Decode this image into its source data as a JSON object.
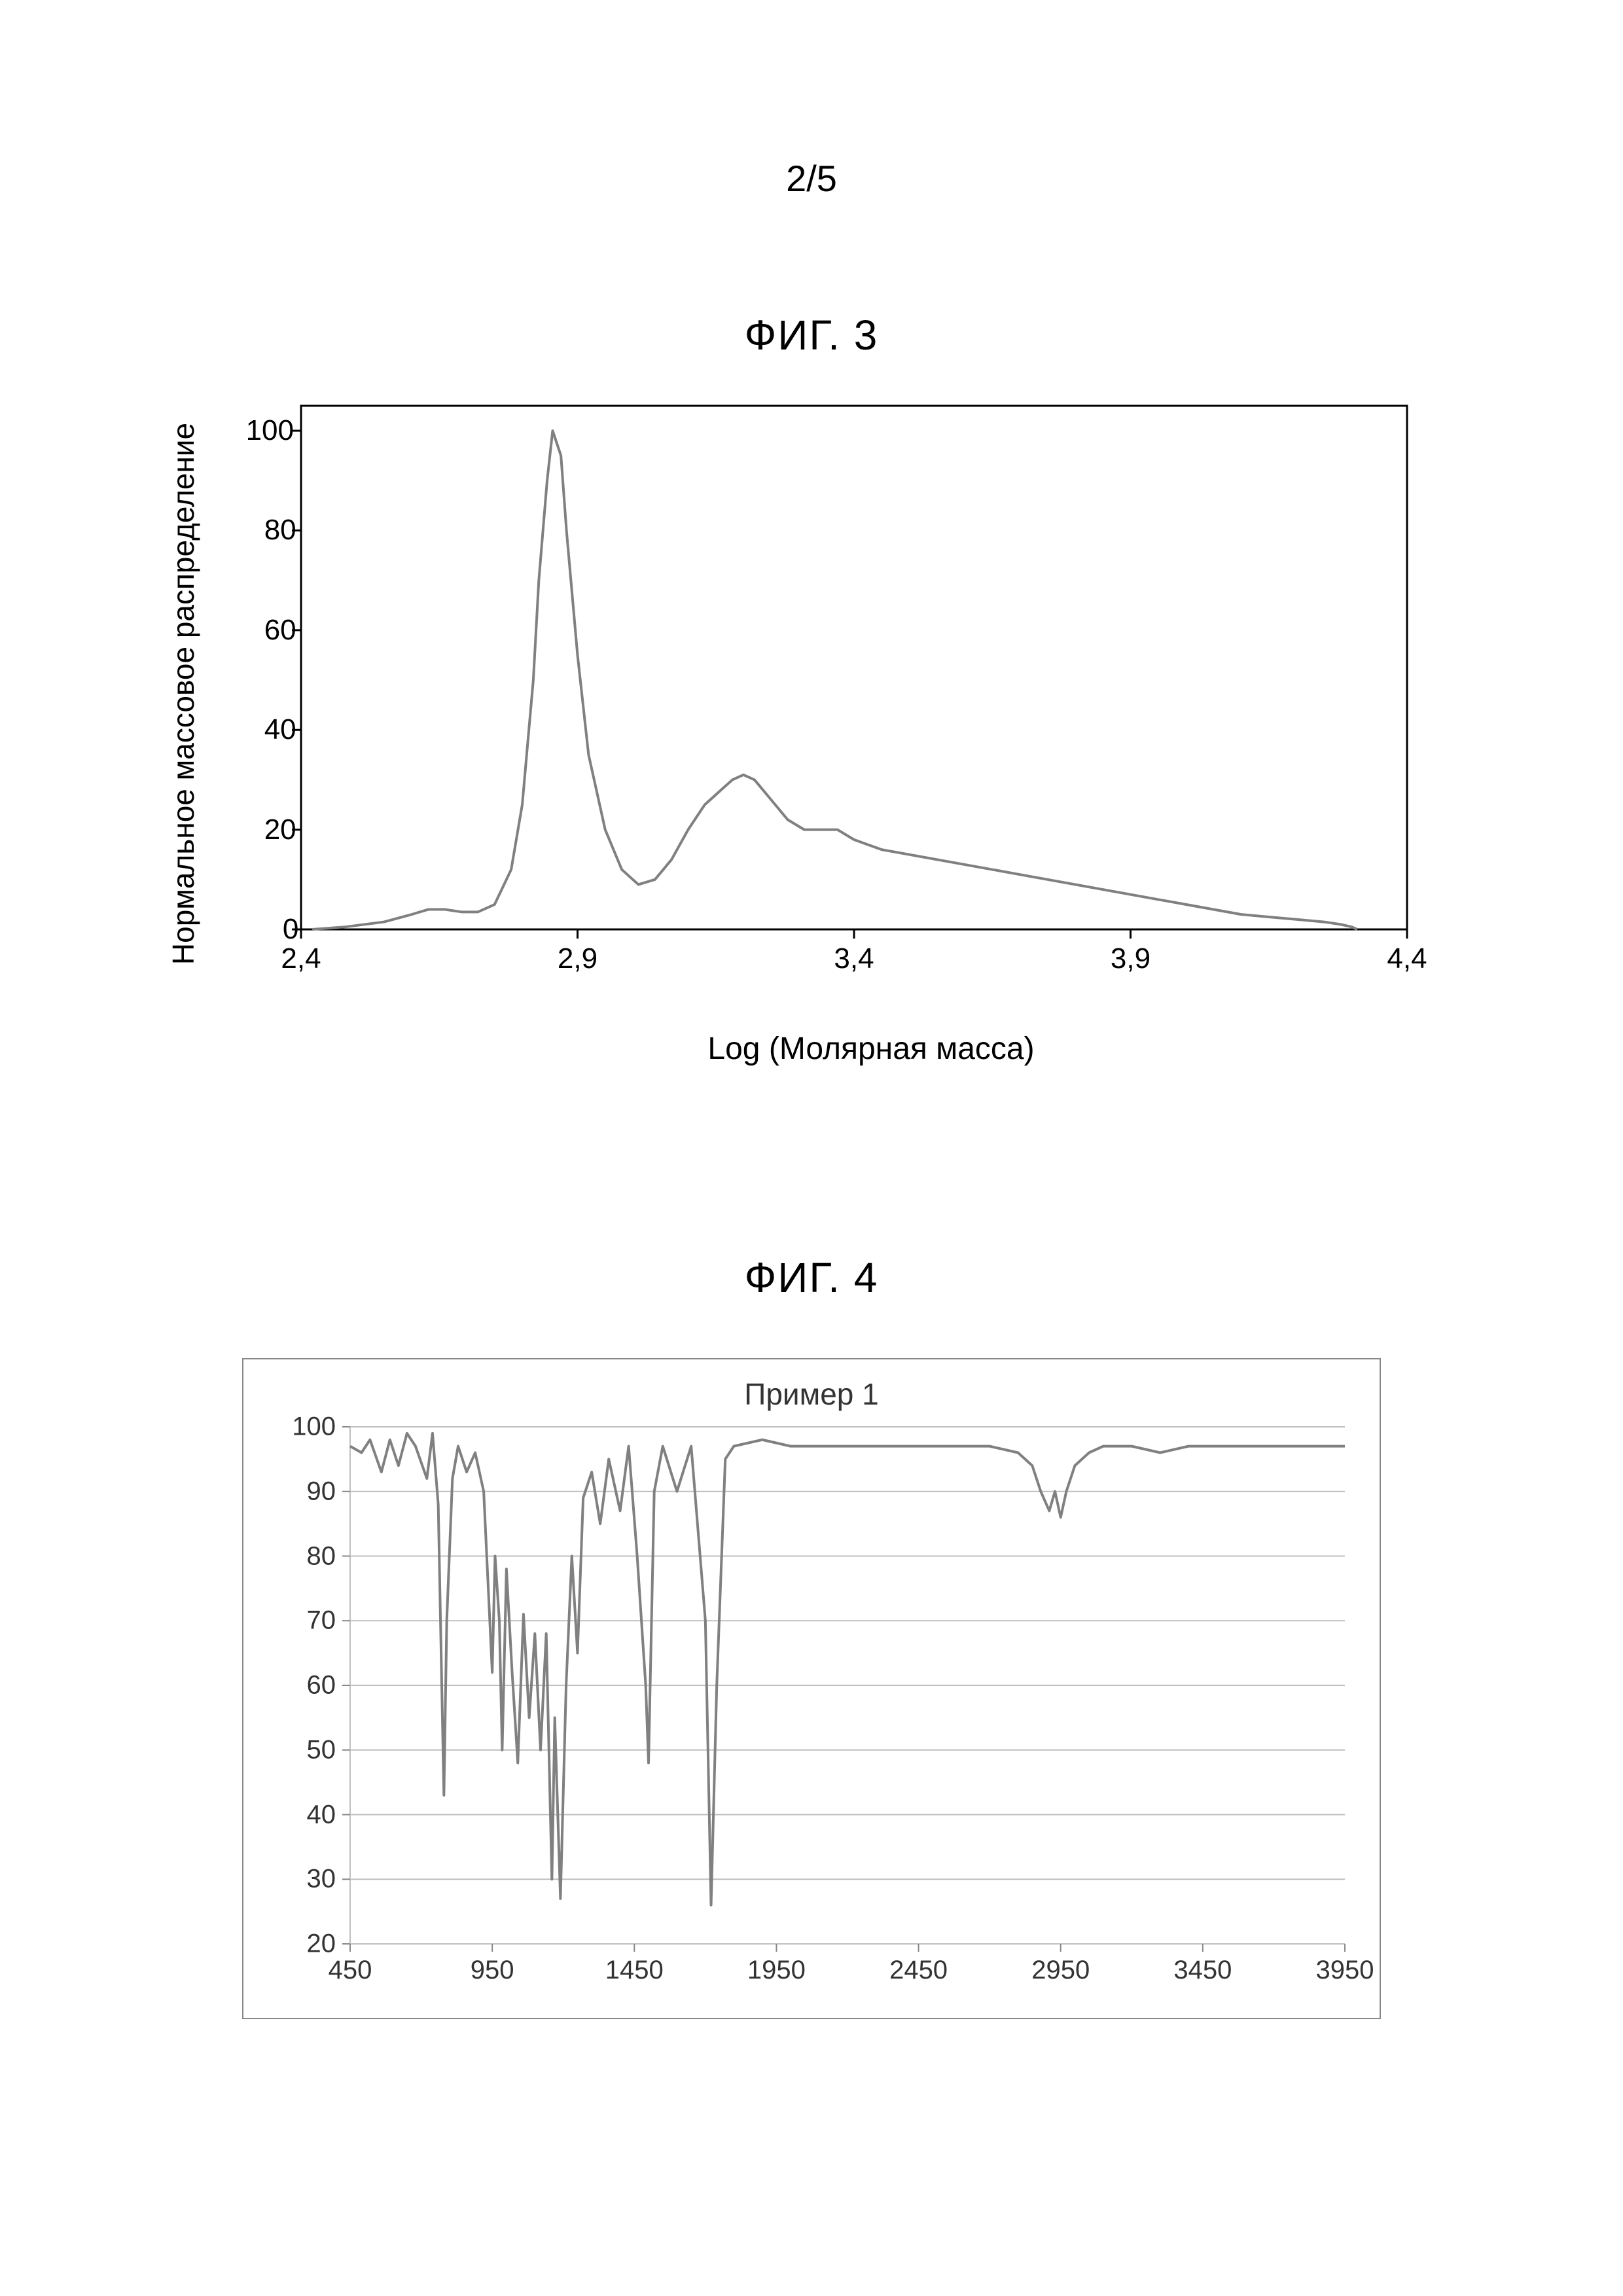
{
  "page_number": "2/5",
  "fig3": {
    "title": "ФИГ. 3",
    "type": "line",
    "ylabel": "Нормальное массовое распределение",
    "xlabel": "Log (Молярная масса)",
    "xlim": [
      2.4,
      4.4
    ],
    "ylim": [
      0,
      105
    ],
    "xticks": [
      "2,4",
      "2,9",
      "3,4",
      "3,9",
      "4,4"
    ],
    "xtick_positions": [
      2.4,
      2.9,
      3.4,
      3.9,
      4.4
    ],
    "yticks": [
      "0",
      "20",
      "40",
      "60",
      "80",
      "100"
    ],
    "ytick_positions": [
      0,
      20,
      40,
      60,
      80,
      100
    ],
    "line_color": "#808080",
    "line_width": 4,
    "border_color": "#000000",
    "tick_color": "#000000",
    "background_color": "#ffffff",
    "label_fontsize": 46,
    "tick_fontsize": 44,
    "data": [
      [
        2.42,
        0
      ],
      [
        2.48,
        0.5
      ],
      [
        2.55,
        1.5
      ],
      [
        2.6,
        3
      ],
      [
        2.63,
        4
      ],
      [
        2.66,
        4
      ],
      [
        2.69,
        3.5
      ],
      [
        2.72,
        3.5
      ],
      [
        2.75,
        5
      ],
      [
        2.78,
        12
      ],
      [
        2.8,
        25
      ],
      [
        2.82,
        50
      ],
      [
        2.83,
        70
      ],
      [
        2.845,
        90
      ],
      [
        2.855,
        100
      ],
      [
        2.87,
        95
      ],
      [
        2.88,
        80
      ],
      [
        2.9,
        55
      ],
      [
        2.92,
        35
      ],
      [
        2.95,
        20
      ],
      [
        2.98,
        12
      ],
      [
        3.01,
        9
      ],
      [
        3.04,
        10
      ],
      [
        3.07,
        14
      ],
      [
        3.1,
        20
      ],
      [
        3.13,
        25
      ],
      [
        3.16,
        28
      ],
      [
        3.18,
        30
      ],
      [
        3.2,
        31
      ],
      [
        3.22,
        30
      ],
      [
        3.25,
        26
      ],
      [
        3.28,
        22
      ],
      [
        3.31,
        20
      ],
      [
        3.34,
        20
      ],
      [
        3.37,
        20
      ],
      [
        3.4,
        18
      ],
      [
        3.45,
        16
      ],
      [
        3.5,
        15
      ],
      [
        3.55,
        14
      ],
      [
        3.6,
        13
      ],
      [
        3.65,
        12
      ],
      [
        3.7,
        11
      ],
      [
        3.75,
        10
      ],
      [
        3.8,
        9
      ],
      [
        3.85,
        8
      ],
      [
        3.9,
        7
      ],
      [
        3.95,
        6
      ],
      [
        4.0,
        5
      ],
      [
        4.05,
        4
      ],
      [
        4.1,
        3
      ],
      [
        4.15,
        2.5
      ],
      [
        4.2,
        2
      ],
      [
        4.25,
        1.5
      ],
      [
        4.28,
        1
      ],
      [
        4.3,
        0.5
      ],
      [
        4.31,
        0
      ]
    ]
  },
  "fig4": {
    "title": "ФИГ. 4",
    "legend": "Пример 1",
    "type": "line",
    "xlim": [
      450,
      3950
    ],
    "ylim": [
      20,
      100
    ],
    "xticks": [
      "450",
      "950",
      "1450",
      "1950",
      "2450",
      "2950",
      "3450",
      "3950"
    ],
    "xtick_positions": [
      450,
      950,
      1450,
      1950,
      2450,
      2950,
      3450,
      3950
    ],
    "yticks": [
      "20",
      "30",
      "40",
      "50",
      "60",
      "70",
      "80",
      "90",
      "100"
    ],
    "ytick_positions": [
      20,
      30,
      40,
      50,
      60,
      70,
      80,
      90,
      100
    ],
    "line_color": "#808080",
    "line_width": 4,
    "border_color": "#888888",
    "grid_color": "#bfbfbf",
    "background_color": "#ffffff",
    "tick_color": "#888888",
    "label_fontsize": 40,
    "title_fontsize": 46,
    "data": [
      [
        450,
        97
      ],
      [
        490,
        96
      ],
      [
        520,
        98
      ],
      [
        560,
        93
      ],
      [
        590,
        98
      ],
      [
        620,
        94
      ],
      [
        650,
        99
      ],
      [
        680,
        97
      ],
      [
        720,
        92
      ],
      [
        740,
        99
      ],
      [
        760,
        88
      ],
      [
        780,
        43
      ],
      [
        790,
        70
      ],
      [
        810,
        92
      ],
      [
        830,
        97
      ],
      [
        860,
        93
      ],
      [
        890,
        96
      ],
      [
        920,
        90
      ],
      [
        950,
        62
      ],
      [
        960,
        80
      ],
      [
        975,
        70
      ],
      [
        985,
        50
      ],
      [
        1000,
        78
      ],
      [
        1020,
        62
      ],
      [
        1040,
        48
      ],
      [
        1060,
        71
      ],
      [
        1080,
        55
      ],
      [
        1100,
        68
      ],
      [
        1120,
        50
      ],
      [
        1140,
        68
      ],
      [
        1160,
        30
      ],
      [
        1170,
        55
      ],
      [
        1190,
        27
      ],
      [
        1210,
        60
      ],
      [
        1230,
        80
      ],
      [
        1250,
        65
      ],
      [
        1270,
        89
      ],
      [
        1300,
        93
      ],
      [
        1330,
        85
      ],
      [
        1360,
        95
      ],
      [
        1400,
        87
      ],
      [
        1430,
        97
      ],
      [
        1460,
        80
      ],
      [
        1490,
        60
      ],
      [
        1500,
        48
      ],
      [
        1520,
        90
      ],
      [
        1550,
        97
      ],
      [
        1600,
        90
      ],
      [
        1650,
        97
      ],
      [
        1700,
        70
      ],
      [
        1720,
        26
      ],
      [
        1740,
        60
      ],
      [
        1770,
        95
      ],
      [
        1800,
        97
      ],
      [
        1900,
        98
      ],
      [
        2000,
        97
      ],
      [
        2100,
        97
      ],
      [
        2200,
        97
      ],
      [
        2300,
        97
      ],
      [
        2400,
        97
      ],
      [
        2500,
        97
      ],
      [
        2600,
        97
      ],
      [
        2700,
        97
      ],
      [
        2800,
        96
      ],
      [
        2850,
        94
      ],
      [
        2880,
        90
      ],
      [
        2910,
        87
      ],
      [
        2930,
        90
      ],
      [
        2950,
        86
      ],
      [
        2970,
        90
      ],
      [
        3000,
        94
      ],
      [
        3050,
        96
      ],
      [
        3100,
        97
      ],
      [
        3200,
        97
      ],
      [
        3300,
        96
      ],
      [
        3400,
        97
      ],
      [
        3500,
        97
      ],
      [
        3600,
        97
      ],
      [
        3700,
        97
      ],
      [
        3800,
        97
      ],
      [
        3900,
        97
      ],
      [
        3950,
        97
      ]
    ]
  }
}
